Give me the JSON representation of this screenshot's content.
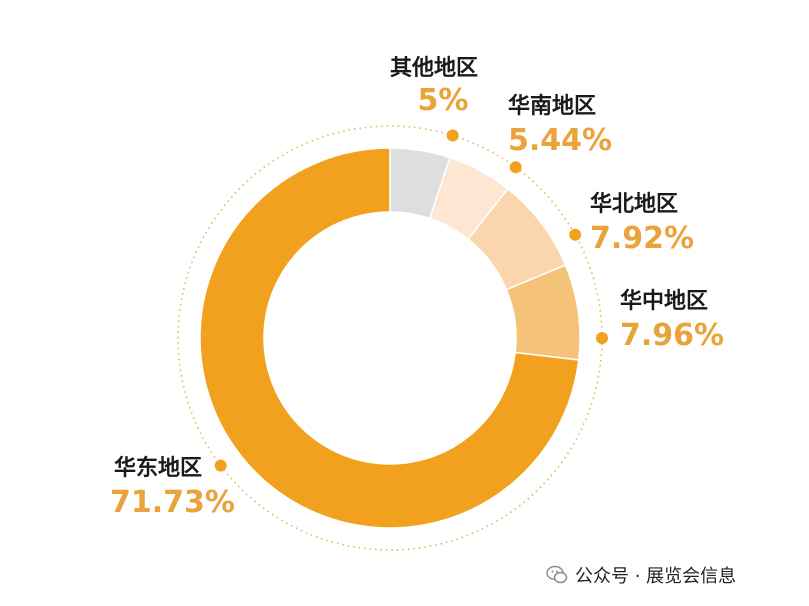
{
  "chart_data": {
    "type": "pie",
    "variant": "donut",
    "categories": [
      "其他地区",
      "华南地区",
      "华北地区",
      "华中地区",
      "华东地区"
    ],
    "values": [
      5,
      5.44,
      7.92,
      7.96,
      71.73
    ],
    "value_labels": [
      "5%",
      "5.44%",
      "7.92%",
      "7.96%",
      "71.73%"
    ],
    "colors": [
      "#dedede",
      "#fde7d3",
      "#fbd6ac",
      "#f5c27a",
      "#f2a11f"
    ],
    "accent_color": "#f2a11f",
    "label_value_color": "#e9a33a",
    "start": "top, clockwise",
    "legend": "none (labels placed around ring)"
  },
  "footer": {
    "icon": "wechat-icon",
    "text": "公众号 · 展览会信息"
  }
}
